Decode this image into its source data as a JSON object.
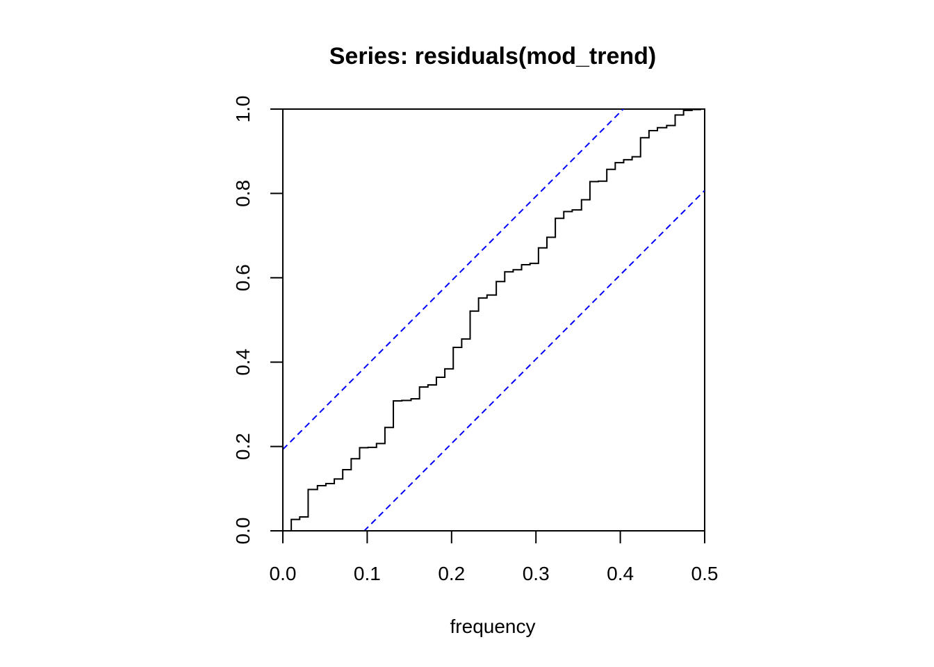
{
  "chart_data": {
    "type": "line",
    "title": "Series:  residuals(mod_trend)",
    "xlabel": "frequency",
    "ylabel": "",
    "xlim": [
      0,
      0.5
    ],
    "ylim": [
      0,
      1
    ],
    "x_ticks": [
      "0.0",
      "0.1",
      "0.2",
      "0.3",
      "0.4",
      "0.5"
    ],
    "y_ticks": [
      "0.0",
      "0.2",
      "0.4",
      "0.6",
      "0.8",
      "1.0"
    ],
    "grid": false,
    "legend": "none",
    "series": [
      {
        "style": "step",
        "color": "#000000",
        "x": [
          0,
          0.01,
          0.02,
          0.03,
          0.041,
          0.051,
          0.061,
          0.071,
          0.081,
          0.091,
          0.101,
          0.111,
          0.121,
          0.131,
          0.141,
          0.152,
          0.162,
          0.172,
          0.182,
          0.192,
          0.202,
          0.212,
          0.222,
          0.232,
          0.242,
          0.253,
          0.263,
          0.273,
          0.283,
          0.293,
          0.303,
          0.313,
          0.323,
          0.333,
          0.343,
          0.354,
          0.364,
          0.374,
          0.384,
          0.394,
          0.404,
          0.414,
          0.424,
          0.434,
          0.444,
          0.455,
          0.465,
          0.475,
          0.485,
          0.495
        ],
        "y": [
          0,
          0.027,
          0.033,
          0.098,
          0.107,
          0.112,
          0.123,
          0.145,
          0.171,
          0.197,
          0.198,
          0.207,
          0.245,
          0.308,
          0.309,
          0.313,
          0.341,
          0.346,
          0.364,
          0.384,
          0.435,
          0.455,
          0.521,
          0.552,
          0.559,
          0.591,
          0.614,
          0.619,
          0.631,
          0.634,
          0.671,
          0.696,
          0.741,
          0.757,
          0.761,
          0.785,
          0.828,
          0.829,
          0.857,
          0.873,
          0.88,
          0.887,
          0.932,
          0.949,
          0.956,
          0.961,
          0.986,
          0.997,
          0.999,
          1.0
        ]
      },
      {
        "style": "dashed",
        "color": "#0000ff",
        "x": [
          0,
          0.5
        ],
        "y": [
          0.193,
          1.193
        ]
      },
      {
        "style": "dashed",
        "color": "#0000ff",
        "x": [
          0,
          0.5
        ],
        "y": [
          -0.193,
          0.807
        ]
      }
    ]
  }
}
